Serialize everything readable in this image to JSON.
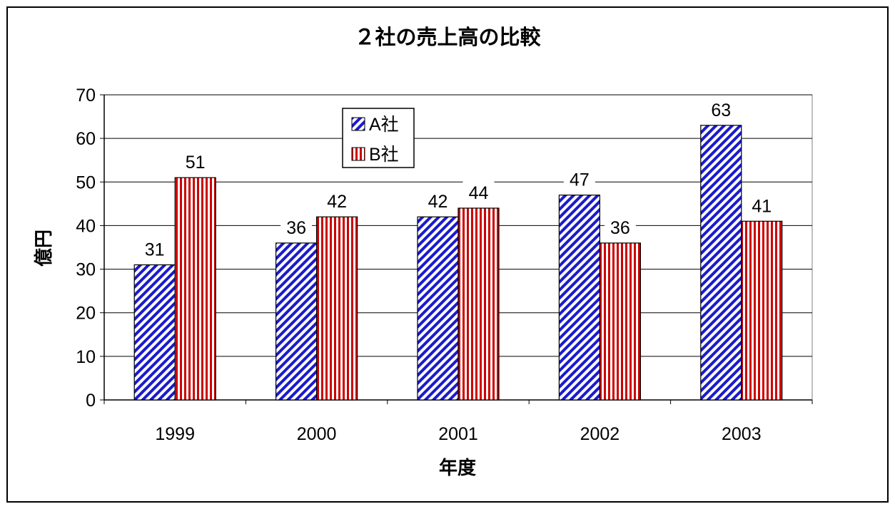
{
  "colors": {
    "series_a": "#1a1acc",
    "series_b": "#cc0000",
    "background": "#ffffff",
    "frame": "#000000",
    "grid": "#000000"
  },
  "chart_data": {
    "type": "bar",
    "title": "２社の売上高の比較",
    "xlabel": "年度",
    "ylabel": "億円",
    "categories": [
      "1999",
      "2000",
      "2001",
      "2002",
      "2003"
    ],
    "series": [
      {
        "name": "A社",
        "values": [
          31,
          36,
          42,
          47,
          63
        ],
        "pattern": "diagonal-stripes",
        "color": "#1a1acc"
      },
      {
        "name": "B社",
        "values": [
          51,
          42,
          44,
          36,
          41
        ],
        "pattern": "vertical-stripes",
        "color": "#cc0000"
      }
    ],
    "ylim": [
      0,
      70
    ],
    "yticks": [
      0,
      10,
      20,
      30,
      40,
      50,
      60,
      70
    ],
    "grid": true,
    "legend": "top-center",
    "data_labels": true
  }
}
